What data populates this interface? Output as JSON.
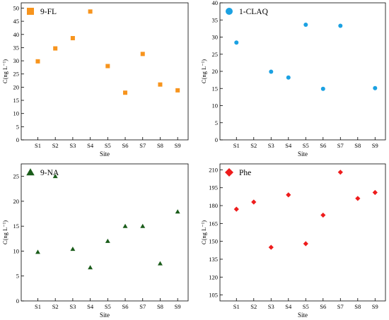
{
  "chart_data": [
    {
      "type": "scatter",
      "legend": "9-FL",
      "marker": "square",
      "color": "#f7941d",
      "categories": [
        "S1",
        "S2",
        "S3",
        "S4",
        "S5",
        "S6",
        "S7",
        "S8",
        "S9"
      ],
      "values": [
        29.8,
        34.7,
        38.6,
        48.7,
        28.0,
        17.9,
        32.6,
        21.0,
        18.8
      ],
      "ylim": [
        0,
        52
      ],
      "yticks": [
        0,
        5,
        10,
        15,
        20,
        25,
        30,
        35,
        40,
        45,
        50
      ],
      "ylabel": "C(ng L⁻¹)",
      "xlabel": "Site"
    },
    {
      "type": "scatter",
      "legend": "1-CLAQ",
      "marker": "circle",
      "color": "#1ba1e2",
      "categories": [
        "S1",
        "S2",
        "S3",
        "S4",
        "S5",
        "S6",
        "S7",
        "S8",
        "S9"
      ],
      "values": [
        28.4,
        null,
        19.9,
        18.2,
        33.6,
        14.9,
        33.3,
        null,
        15.1
      ],
      "ylim": [
        0,
        40
      ],
      "yticks": [
        0,
        5,
        10,
        15,
        20,
        25,
        30,
        35,
        40
      ],
      "ylabel": "C(ng L⁻¹)",
      "xlabel": "Site"
    },
    {
      "type": "scatter",
      "legend": "9-NA",
      "marker": "triangle",
      "color": "#1a5c1a",
      "categories": [
        "S1",
        "S2",
        "S3",
        "S4",
        "S5",
        "S6",
        "S7",
        "S8",
        "S9"
      ],
      "values": [
        9.8,
        25.0,
        10.4,
        6.7,
        12.0,
        15.0,
        15.0,
        7.5,
        17.9
      ],
      "ylim": [
        0,
        27.5
      ],
      "yticks": [
        0,
        5,
        10,
        15,
        20,
        25
      ],
      "ylabel": "C(ng L⁻¹)",
      "xlabel": "Site"
    },
    {
      "type": "scatter",
      "legend": "Phe",
      "marker": "diamond",
      "color": "#ee1c1c",
      "categories": [
        "S1",
        "S2",
        "S3",
        "S4",
        "S5",
        "S6",
        "S7",
        "S8",
        "S9"
      ],
      "values": [
        177,
        183,
        145,
        189,
        148,
        172,
        208,
        186,
        191
      ],
      "ylim": [
        100,
        215
      ],
      "yticks": [
        105,
        120,
        135,
        150,
        165,
        180,
        195,
        210
      ],
      "ylabel": "C(ng L⁻¹)",
      "xlabel": "Site"
    }
  ]
}
